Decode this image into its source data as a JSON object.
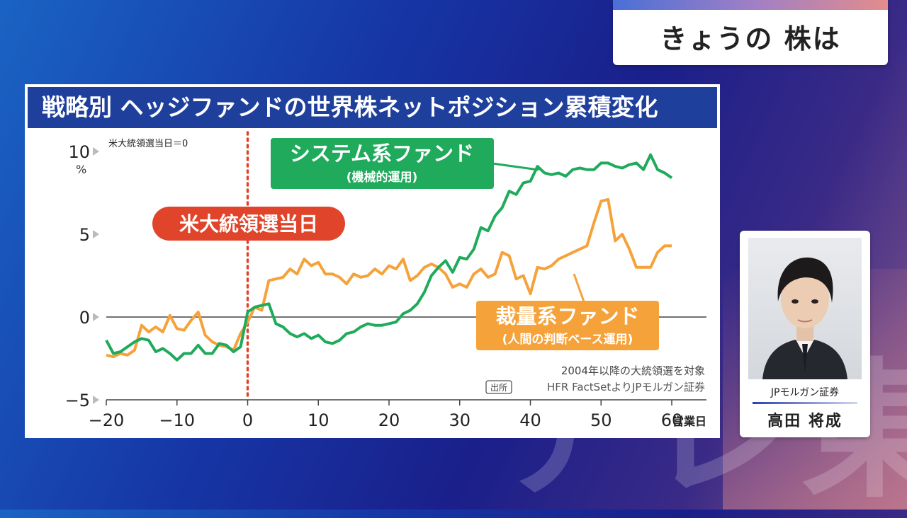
{
  "broadcast": {
    "topic": "きょうの 株は",
    "watermark": "テレ東"
  },
  "person": {
    "organization": "JPモルガン証券",
    "name": "高田 将成"
  },
  "colors": {
    "system": "#1faa5c",
    "discretionary": "#f5a23a",
    "election_line": "#e0452b",
    "title_bg": "#1f3f9c"
  },
  "chart_data": {
    "type": "line",
    "title": "戦略別 ヘッジファンドの世界株ネットポジション累積変化",
    "xlabel": "営業日",
    "ylabel": "%",
    "xlim": [
      -20,
      60
    ],
    "ylim": [
      -5,
      10
    ],
    "x_ticks": [
      "−20",
      "−10",
      "0",
      "10",
      "20",
      "30",
      "40",
      "50",
      "60"
    ],
    "y_ticks": [
      "10",
      "5",
      "0",
      "−5"
    ],
    "baseline_note": "米大統領選当日＝0",
    "event_label": "米大統領選当日",
    "footnote": "2004年以降の大統領選を対象",
    "source_tag": "出所",
    "source": "HFR FactSetよりJPモルガン証券",
    "series": [
      {
        "name": "システム系ファンド",
        "sublabel": "(機械的運用)",
        "x": [
          -20,
          -19,
          -18,
          -17,
          -16,
          -15,
          -14,
          -13,
          -12,
          -11,
          -10,
          -9,
          -8,
          -7,
          -6,
          -5,
          -4,
          -3,
          -2,
          -1,
          0,
          1,
          2,
          3,
          4,
          5,
          6,
          7,
          8,
          9,
          10,
          11,
          12,
          13,
          14,
          15,
          16,
          17,
          18,
          19,
          20,
          21,
          22,
          23,
          24,
          25,
          26,
          27,
          28,
          29,
          30,
          31,
          32,
          33,
          34,
          35,
          36,
          37,
          38,
          39,
          40,
          41,
          42,
          43,
          44,
          45,
          46,
          47,
          48,
          49,
          50,
          51,
          52,
          53,
          54,
          55,
          56,
          57,
          58,
          59,
          60
        ],
        "values": [
          -1.4,
          -2.2,
          -2.1,
          -1.8,
          -1.5,
          -1.3,
          -1.4,
          -2.1,
          -1.9,
          -2.2,
          -2.6,
          -2.2,
          -2.2,
          -1.7,
          -2.2,
          -2.2,
          -1.6,
          -1.7,
          -2.1,
          -1.8,
          0.3,
          0.6,
          0.7,
          0.8,
          -0.4,
          -0.6,
          -1.0,
          -1.2,
          -1.0,
          -1.3,
          -1.1,
          -1.5,
          -1.6,
          -1.4,
          -1.0,
          -0.9,
          -0.6,
          -0.4,
          -0.5,
          -0.5,
          -0.4,
          -0.3,
          0.2,
          0.4,
          0.8,
          1.5,
          2.5,
          3.0,
          3.4,
          2.7,
          3.6,
          3.5,
          4.1,
          5.4,
          5.2,
          6.1,
          6.6,
          7.6,
          7.4,
          8.1,
          8.2,
          9.1,
          8.7,
          8.6,
          8.7,
          8.5,
          8.9,
          9.0,
          8.9,
          8.9,
          9.3,
          9.3,
          9.1,
          9.0,
          9.2,
          9.3,
          8.9,
          9.8,
          8.9,
          8.7,
          8.4
        ]
      },
      {
        "name": "裁量系ファンド",
        "sublabel": "(人間の判断ベース運用)",
        "x": [
          -20,
          -19,
          -18,
          -17,
          -16,
          -15,
          -14,
          -13,
          -12,
          -11,
          -10,
          -9,
          -8,
          -7,
          -6,
          -5,
          -4,
          -3,
          -2,
          -1,
          0,
          1,
          2,
          3,
          4,
          5,
          6,
          7,
          8,
          9,
          10,
          11,
          12,
          13,
          14,
          15,
          16,
          17,
          18,
          19,
          20,
          21,
          22,
          23,
          24,
          25,
          26,
          27,
          28,
          29,
          30,
          31,
          32,
          33,
          34,
          35,
          36,
          37,
          38,
          39,
          40,
          41,
          42,
          43,
          44,
          45,
          46,
          47,
          48,
          49,
          50,
          51,
          52,
          53,
          54,
          55,
          56,
          57,
          58,
          59,
          60
        ],
        "values": [
          -2.3,
          -2.4,
          -2.2,
          -2.3,
          -2.0,
          -0.5,
          -0.9,
          -0.6,
          -0.9,
          0.1,
          -0.7,
          -0.8,
          -0.2,
          0.3,
          -1.1,
          -1.5,
          -1.7,
          -1.8,
          -2.0,
          -1.0,
          -0.3,
          0.6,
          0.4,
          2.2,
          2.3,
          2.4,
          2.9,
          2.6,
          3.5,
          3.1,
          3.3,
          2.6,
          2.6,
          2.4,
          2.0,
          2.6,
          2.4,
          2.5,
          2.9,
          2.6,
          3.1,
          2.9,
          3.5,
          2.2,
          2.5,
          3.0,
          3.2,
          3.0,
          2.6,
          1.8,
          2.0,
          1.8,
          2.6,
          2.9,
          2.4,
          2.6,
          3.9,
          3.7,
          2.3,
          2.5,
          1.4,
          3.0,
          2.9,
          3.1,
          3.5,
          3.7,
          3.9,
          4.1,
          4.3,
          5.7,
          7.0,
          7.1,
          4.6,
          5.0,
          4.1,
          3.0,
          3.0,
          3.0,
          3.9,
          4.3,
          4.3
        ]
      }
    ]
  }
}
